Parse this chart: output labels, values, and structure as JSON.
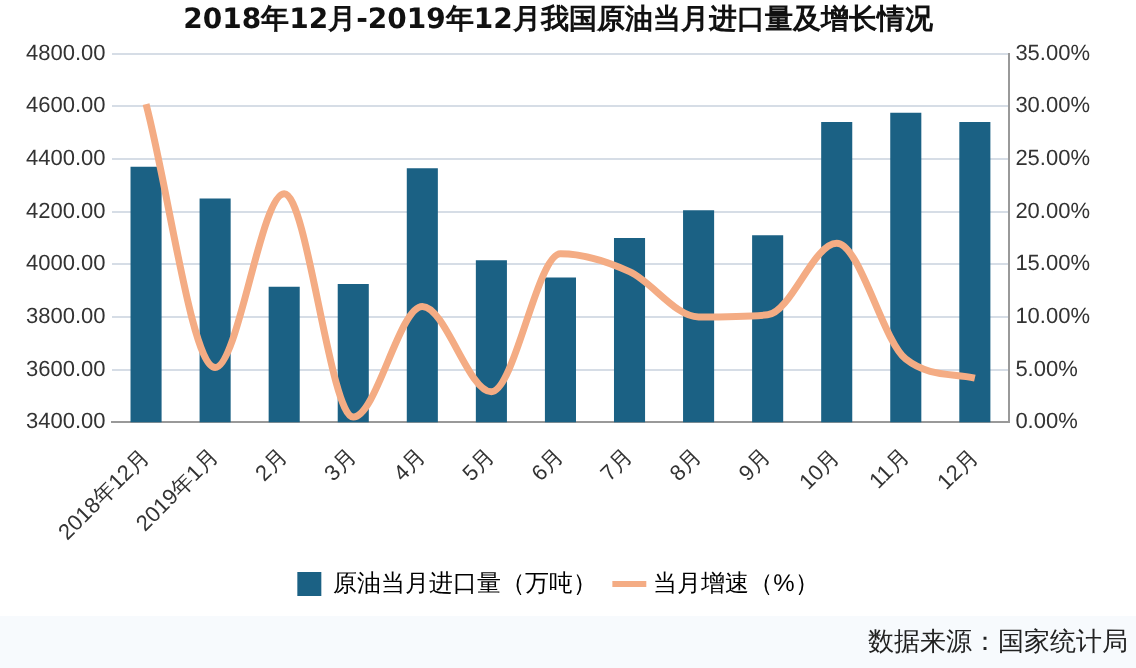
{
  "chart_data": {
    "type": "bar",
    "title": "2018年12月-2019年12月我国原油当月进口量及增长情况",
    "categories": [
      "2018年12月",
      "2019年1月",
      "2月",
      "3月",
      "4月",
      "5月",
      "6月",
      "7月",
      "8月",
      "9月",
      "10月",
      "11月",
      "12月"
    ],
    "series": [
      {
        "name": "原油当月进口量（万吨）",
        "color": "#1b6184",
        "values": [
          4370,
          4250,
          3915,
          3925,
          4365,
          4015,
          3950,
          4100,
          4205,
          4110,
          4540,
          4575,
          4540
        ]
      },
      {
        "name": "当月增速（%）",
        "type": "line",
        "axis": "y2",
        "color": "#f4ac84",
        "values": [
          30.2,
          5.2,
          21.7,
          0.5,
          11,
          2.9,
          16,
          14.3,
          10,
          10.2,
          17,
          6,
          4.2
        ]
      }
    ],
    "ylim": [
      3400,
      4800
    ],
    "yticks": [
      {
        "value": 3400,
        "label": "3400.00"
      },
      {
        "value": 3600,
        "label": "3600.00"
      },
      {
        "value": 3800,
        "label": "3800.00"
      },
      {
        "value": 4000,
        "label": "4000.00"
      },
      {
        "value": 4200,
        "label": "4200.00"
      },
      {
        "value": 4400,
        "label": "4400.00"
      },
      {
        "value": 4600,
        "label": "4600.00"
      },
      {
        "value": 4800,
        "label": "4800.00"
      }
    ],
    "y2lim": [
      0,
      35
    ],
    "y2ticks": [
      {
        "value": 0,
        "label": "0.00%"
      },
      {
        "value": 5,
        "label": "5.00%"
      },
      {
        "value": 10,
        "label": "10.00%"
      },
      {
        "value": 15,
        "label": "15.00%"
      },
      {
        "value": 20,
        "label": "20.00%"
      },
      {
        "value": 25,
        "label": "25.00%"
      },
      {
        "value": 30,
        "label": "30.00%"
      },
      {
        "value": 35,
        "label": "35.00%"
      }
    ],
    "grid": "y",
    "legend": "bottom",
    "marker": "none",
    "line_style": "solid",
    "annotations": [
      "数据来源：国家统计局"
    ]
  }
}
